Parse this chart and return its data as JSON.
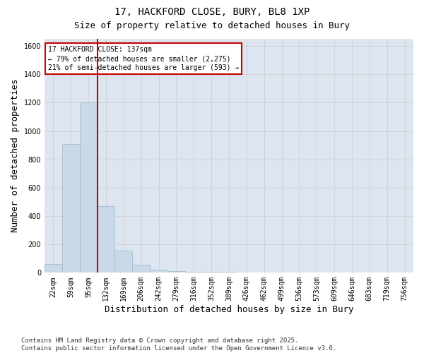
{
  "title_line1": "17, HACKFORD CLOSE, BURY, BL8 1XP",
  "title_line2": "Size of property relative to detached houses in Bury",
  "xlabel": "Distribution of detached houses by size in Bury",
  "ylabel": "Number of detached properties",
  "bins": [
    "22sqm",
    "59sqm",
    "95sqm",
    "132sqm",
    "169sqm",
    "206sqm",
    "242sqm",
    "279sqm",
    "316sqm",
    "352sqm",
    "389sqm",
    "426sqm",
    "462sqm",
    "499sqm",
    "536sqm",
    "573sqm",
    "609sqm",
    "646sqm",
    "683sqm",
    "719sqm",
    "756sqm"
  ],
  "values": [
    60,
    910,
    1200,
    470,
    155,
    55,
    20,
    10,
    5,
    5,
    8,
    0,
    0,
    0,
    0,
    0,
    0,
    0,
    0,
    0,
    0
  ],
  "bar_color": "#c9d9e8",
  "bar_edgecolor": "#a0b8cc",
  "grid_color": "#cccccc",
  "background_color": "#dde6f0",
  "vline_color": "#cc0000",
  "vline_pos": 2.5,
  "annotation_text": "17 HACKFORD CLOSE: 137sqm\n← 79% of detached houses are smaller (2,275)\n21% of semi-detached houses are larger (593) →",
  "annotation_box_edgecolor": "#cc0000",
  "annotation_box_facecolor": "#ffffff",
  "ylim": [
    0,
    1650
  ],
  "yticks": [
    0,
    200,
    400,
    600,
    800,
    1000,
    1200,
    1400,
    1600
  ],
  "footnote": "Contains HM Land Registry data © Crown copyright and database right 2025.\nContains public sector information licensed under the Open Government Licence v3.0.",
  "title_fontsize": 10,
  "subtitle_fontsize": 9,
  "tick_fontsize": 7,
  "label_fontsize": 9,
  "footnote_fontsize": 6.5
}
